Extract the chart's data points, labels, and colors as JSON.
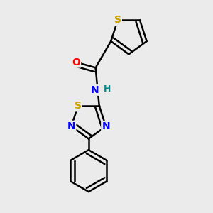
{
  "background_color": "#ebebeb",
  "atom_colors": {
    "S": "#c8a000",
    "N": "#0000ff",
    "O": "#ff0000",
    "C": "#000000",
    "H": "#008b8b"
  },
  "bond_color": "#000000",
  "bond_width": 1.8,
  "font_size_atoms": 10,
  "font_size_H": 9
}
